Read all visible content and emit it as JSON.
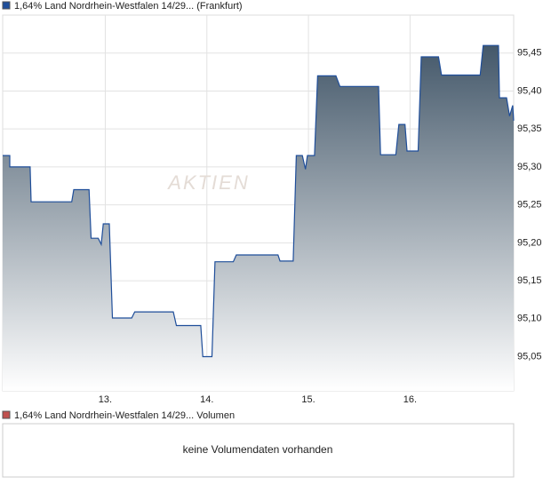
{
  "chart_data": {
    "type": "area",
    "series": [
      {
        "name": "1,64% Land Nordrhein-Westfalen 14/29... (Frankfurt)",
        "color": "#1f4e9a",
        "x": [
          11.99,
          12.06,
          12.06,
          12.26,
          12.27,
          12.67,
          12.69,
          12.84,
          12.86,
          12.93,
          12.96,
          12.98,
          13.04,
          13.07,
          13.26,
          13.29,
          13.67,
          13.7,
          13.94,
          13.96,
          14.05,
          14.08,
          14.26,
          14.29,
          14.7,
          14.72,
          14.85,
          14.88,
          14.94,
          14.97,
          14.99,
          15.06,
          15.09,
          15.27,
          15.31,
          15.69,
          15.71,
          15.86,
          15.89,
          15.95,
          15.97,
          16.08,
          16.11,
          16.28,
          16.31,
          16.69,
          16.72,
          16.87,
          16.88,
          16.95,
          16.98,
          17.01,
          17.02
        ],
        "values": [
          95.315,
          95.315,
          95.3,
          95.3,
          95.254,
          95.254,
          95.27,
          95.27,
          95.206,
          95.206,
          95.198,
          95.225,
          95.225,
          95.101,
          95.101,
          95.109,
          95.109,
          95.091,
          95.091,
          95.05,
          95.05,
          95.175,
          95.175,
          95.184,
          95.184,
          95.176,
          95.176,
          95.315,
          95.315,
          95.297,
          95.315,
          95.315,
          95.42,
          95.42,
          95.406,
          95.406,
          95.316,
          95.316,
          95.356,
          95.356,
          95.321,
          95.321,
          95.445,
          95.445,
          95.421,
          95.421,
          95.46,
          95.46,
          95.391,
          95.391,
          95.367,
          95.381,
          95.361
        ]
      }
    ],
    "xlim": [
      11.99,
      17.02
    ],
    "xticks": [
      {
        "value": 13,
        "label": "13."
      },
      {
        "value": 14,
        "label": "14."
      },
      {
        "value": 15,
        "label": "15."
      },
      {
        "value": 16,
        "label": "16."
      }
    ],
    "ylim": [
      95.005,
      95.5
    ],
    "yticks": [
      {
        "value": 95.05,
        "label": "95,05"
      },
      {
        "value": 95.1,
        "label": "95,10"
      },
      {
        "value": 95.15,
        "label": "95,15"
      },
      {
        "value": 95.2,
        "label": "95,20"
      },
      {
        "value": 95.25,
        "label": "95,25"
      },
      {
        "value": 95.3,
        "label": "95,30"
      },
      {
        "value": 95.35,
        "label": "95,35"
      },
      {
        "value": 95.4,
        "label": "95,40"
      },
      {
        "value": 95.45,
        "label": "95,45"
      }
    ],
    "grid": true,
    "watermark": "AKTIEN"
  },
  "volume_panel": {
    "legend": "1,64% Land Nordrhein-Westfalen 14/29... Volumen",
    "legend_color": "#c0504d",
    "message": "keine Volumendaten vorhanden"
  }
}
